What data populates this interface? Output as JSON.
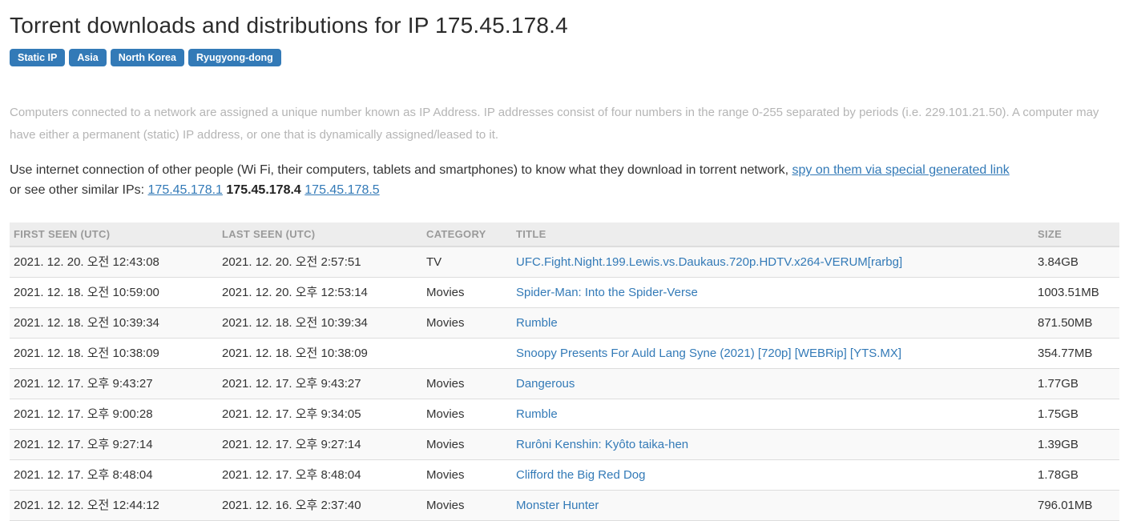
{
  "page": {
    "title": "Torrent downloads and distributions for IP 175.45.178.4"
  },
  "badges": [
    "Static IP",
    "Asia",
    "North Korea",
    "Ryugyong-dong"
  ],
  "colors": {
    "accent_blue": "#337ab7",
    "badge_bg": "#337ab7",
    "muted_text": "#b5b5b5",
    "table_header_bg": "#ededed",
    "table_header_text": "#9a9a9a",
    "row_stripe": "#f9f9f9",
    "border": "#dddddd"
  },
  "intro": {
    "text": "Computers connected to a network are assigned a unique number known as IP Address. IP addresses consist of four numbers in the range 0-255 separated by periods (i.e. 229.101.21.50). A computer may have either a permanent (static) IP address, or one that is dynamically assigned/leased to it."
  },
  "usage": {
    "lead": "Use internet connection of other people (Wi Fi, their computers, tablets and smartphones) to know what they download in torrent network,",
    "spy_link_label": "spy on them via special generated link",
    "similar_lead": "or see other similar IPs:",
    "similar_ips": {
      "prev": "175.45.178.1",
      "current": "175.45.178.4",
      "next": "175.45.178.5"
    }
  },
  "table": {
    "headers": [
      "FIRST SEEN (UTC)",
      "LAST SEEN (UTC)",
      "CATEGORY",
      "TITLE",
      "SIZE"
    ],
    "rows": [
      {
        "first_seen": "2021. 12. 20. 오전 12:43:08",
        "last_seen": "2021. 12. 20. 오전 2:57:51",
        "category": "TV",
        "title": "UFC.Fight.Night.199.Lewis.vs.Daukaus.720p.HDTV.x264-VERUM[rarbg]",
        "size": "3.84GB"
      },
      {
        "first_seen": "2021. 12. 18. 오전 10:59:00",
        "last_seen": "2021. 12. 20. 오후 12:53:14",
        "category": "Movies",
        "title": "Spider-Man: Into the Spider-Verse",
        "size": "1003.51MB"
      },
      {
        "first_seen": "2021. 12. 18. 오전 10:39:34",
        "last_seen": "2021. 12. 18. 오전 10:39:34",
        "category": "Movies",
        "title": "Rumble",
        "size": "871.50MB"
      },
      {
        "first_seen": "2021. 12. 18. 오전 10:38:09",
        "last_seen": "2021. 12. 18. 오전 10:38:09",
        "category": "",
        "title": "Snoopy Presents For Auld Lang Syne (2021) [720p] [WEBRip] [YTS.MX]",
        "size": "354.77MB"
      },
      {
        "first_seen": "2021. 12. 17. 오후 9:43:27",
        "last_seen": "2021. 12. 17. 오후 9:43:27",
        "category": "Movies",
        "title": "Dangerous",
        "size": "1.77GB"
      },
      {
        "first_seen": "2021. 12. 17. 오후 9:00:28",
        "last_seen": "2021. 12. 17. 오후 9:34:05",
        "category": "Movies",
        "title": "Rumble",
        "size": "1.75GB"
      },
      {
        "first_seen": "2021. 12. 17. 오후 9:27:14",
        "last_seen": "2021. 12. 17. 오후 9:27:14",
        "category": "Movies",
        "title": "Rurôni Kenshin: Kyôto taika-hen",
        "size": "1.39GB"
      },
      {
        "first_seen": "2021. 12. 17. 오후 8:48:04",
        "last_seen": "2021. 12. 17. 오후 8:48:04",
        "category": "Movies",
        "title": "Clifford the Big Red Dog",
        "size": "1.78GB"
      },
      {
        "first_seen": "2021. 12. 12. 오전 12:44:12",
        "last_seen": "2021. 12. 16. 오후 2:37:40",
        "category": "Movies",
        "title": "Monster Hunter",
        "size": "796.01MB"
      }
    ]
  }
}
